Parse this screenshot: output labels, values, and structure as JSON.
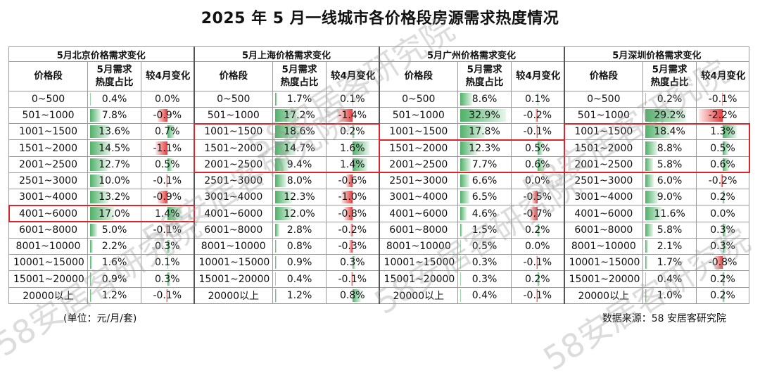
{
  "title": "2025 年 5 月一线城市各价格段房源需求热度情况",
  "unit_note": "(单位：元/月/套)",
  "source_note": "数据来源：58 安居客研究院",
  "watermark": "58安居客研究院",
  "colors": {
    "positive": "#4fb168",
    "negative": "#e53b3b",
    "highlight": "#d9262c"
  },
  "chart_data": {
    "type": "table",
    "columns": [
      "价格段",
      "5月需求热度占比",
      "较4月变化"
    ],
    "price_ranges": [
      "0~500",
      "501~1000",
      "1001~1500",
      "1501~2000",
      "2001~2500",
      "2501~3000",
      "3001~4000",
      "4001~6000",
      "6001~8000",
      "8001~10000",
      "10001~15000",
      "15001~20000",
      "20000以上"
    ],
    "cities": [
      {
        "name": "北京",
        "header": "5月北京价格需求变化",
        "share": [
          "0.4%",
          "7.8%",
          "13.6%",
          "14.5%",
          "12.7%",
          "10.0%",
          "13.2%",
          "17.0%",
          "5.0%",
          "2.2%",
          "1.6%",
          "0.9%",
          "1.2%"
        ],
        "change": [
          "0.0%",
          "-0.9%",
          "0.7%",
          "-1.1%",
          "0.5%",
          "-0.1%",
          "-0.9%",
          "1.4%",
          "-0.1%",
          "0.3%",
          "0.1%",
          "0.3%",
          "-0.1%"
        ],
        "highlight_rows": [
          [
            7,
            7
          ]
        ]
      },
      {
        "name": "上海",
        "header": "5月上海价格需求变化",
        "share": [
          "1.7%",
          "17.2%",
          "18.6%",
          "14.7%",
          "9.4%",
          "8.0%",
          "12.3%",
          "12.0%",
          "2.8%",
          "0.8%",
          "0.9%",
          "0.4%",
          "1.2%"
        ],
        "change": [
          "0.1%",
          "-1.4%",
          "0.2%",
          "1.6%",
          "1.4%",
          "-0.6%",
          "-1.0%",
          "-0.8%",
          "-0.2%",
          "-0.3%",
          "0.3%",
          "-0.1%",
          "0.8%"
        ],
        "highlight_rows": [
          [
            2,
            4
          ]
        ]
      },
      {
        "name": "广州",
        "header": "5月广州价格需求变化",
        "share": [
          "8.6%",
          "32.9%",
          "17.8%",
          "12.3%",
          "7.7%",
          "6.6%",
          "6.5%",
          "4.6%",
          "1.5%",
          "0.5%",
          "0.3%",
          "0.3%",
          "0.4%"
        ],
        "change": [
          "0.1%",
          "-0.2%",
          "-0.1%",
          "0.5%",
          "0.6%",
          "0.0%",
          "-0.5%",
          "-0.7%",
          "0.2%",
          "0.0%",
          "-0.1%",
          "0.2%",
          "-0.1%"
        ],
        "highlight_rows": [
          [
            3,
            4
          ]
        ]
      },
      {
        "name": "深圳",
        "header": "5月深圳价格需求变化",
        "share": [
          "0.2%",
          "29.2%",
          "18.4%",
          "8.8%",
          "5.8%",
          "6.0%",
          "9.0%",
          "11.6%",
          "5.8%",
          "2.1%",
          "1.7%",
          "0.4%",
          "1.0%"
        ],
        "change": [
          "-0.1%",
          "-2.2%",
          "1.3%",
          "0.5%",
          "0.6%",
          "-0.2%",
          "0.2%",
          "0.0%",
          "0.3%",
          "0.3%",
          "-0.8%",
          "0.2%",
          "0.2%"
        ],
        "highlight_rows": [
          [
            2,
            4
          ]
        ]
      }
    ]
  }
}
